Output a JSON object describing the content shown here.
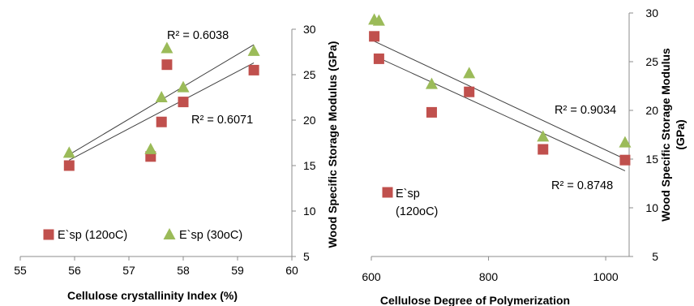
{
  "chart_data": [
    {
      "type": "scatter",
      "xlabel": "Cellulose crystallinity Index (%)",
      "ylabel": "Wood Specific Storage Modulus (GPa)",
      "xlim": [
        55,
        60
      ],
      "ylim": [
        5,
        30
      ],
      "xticks": [
        "55",
        "56",
        "57",
        "58",
        "59",
        "60"
      ],
      "yticks": [
        "5",
        "10",
        "15",
        "20",
        "25",
        "30"
      ],
      "y_axis_position": "right",
      "grid": false,
      "legend": "bottom-left",
      "series": [
        {
          "name": "E`sp (120oC)",
          "marker": "square",
          "color": "#c0504d",
          "x": [
            55.9,
            57.4,
            57.6,
            57.7,
            58.0,
            59.3
          ],
          "y": [
            15.0,
            16.0,
            19.8,
            26.1,
            22.0,
            25.5
          ],
          "trendline": {
            "from": [
              55.9,
              15.6
            ],
            "to": [
              59.3,
              26.3
            ]
          },
          "r2_label": "R² = 0.6071"
        },
        {
          "name": "E`sp (30oC)",
          "marker": "triangle",
          "color": "#9bbb59",
          "x": [
            55.9,
            57.4,
            57.6,
            57.7,
            58.0,
            59.3
          ],
          "y": [
            16.4,
            16.8,
            22.5,
            27.9,
            23.6,
            27.6
          ],
          "trendline": {
            "from": [
              55.9,
              16.2
            ],
            "to": [
              59.3,
              28.3
            ]
          },
          "r2_label": "R² = 0.6038"
        }
      ]
    },
    {
      "type": "scatter",
      "xlabel": "Cellulose Degree of Polymerization",
      "ylabel": "Wood Specific Storage Modulus (GPa)",
      "xlim": [
        600,
        1040
      ],
      "ylim": [
        5,
        30
      ],
      "xticks": [
        "600",
        "800",
        "1000"
      ],
      "yticks": [
        "5",
        "10",
        "15",
        "20",
        "25",
        "30"
      ],
      "y_axis_position": "right",
      "grid": false,
      "legend": "bottom-left",
      "series": [
        {
          "name": "E`sp (120oC)",
          "marker": "square",
          "color": "#c0504d",
          "x": [
            605,
            613,
            703,
            767,
            893,
            1033
          ],
          "y": [
            27.6,
            25.3,
            19.8,
            21.9,
            16.0,
            14.9
          ],
          "trendline": {
            "from": [
              605,
              25.6
            ],
            "to": [
              1033,
              13.8
            ]
          },
          "r2_label": "R² = 0.8748"
        },
        {
          "name": "",
          "marker": "triangle",
          "color": "#9bbb59",
          "x": [
            605,
            613,
            703,
            767,
            893,
            1033
          ],
          "y": [
            29.3,
            29.2,
            22.7,
            23.8,
            17.3,
            16.7
          ],
          "trendline": {
            "from": [
              605,
              27.1
            ],
            "to": [
              1033,
              15.0
            ]
          },
          "r2_label": "R² = 0.9034"
        }
      ]
    }
  ]
}
